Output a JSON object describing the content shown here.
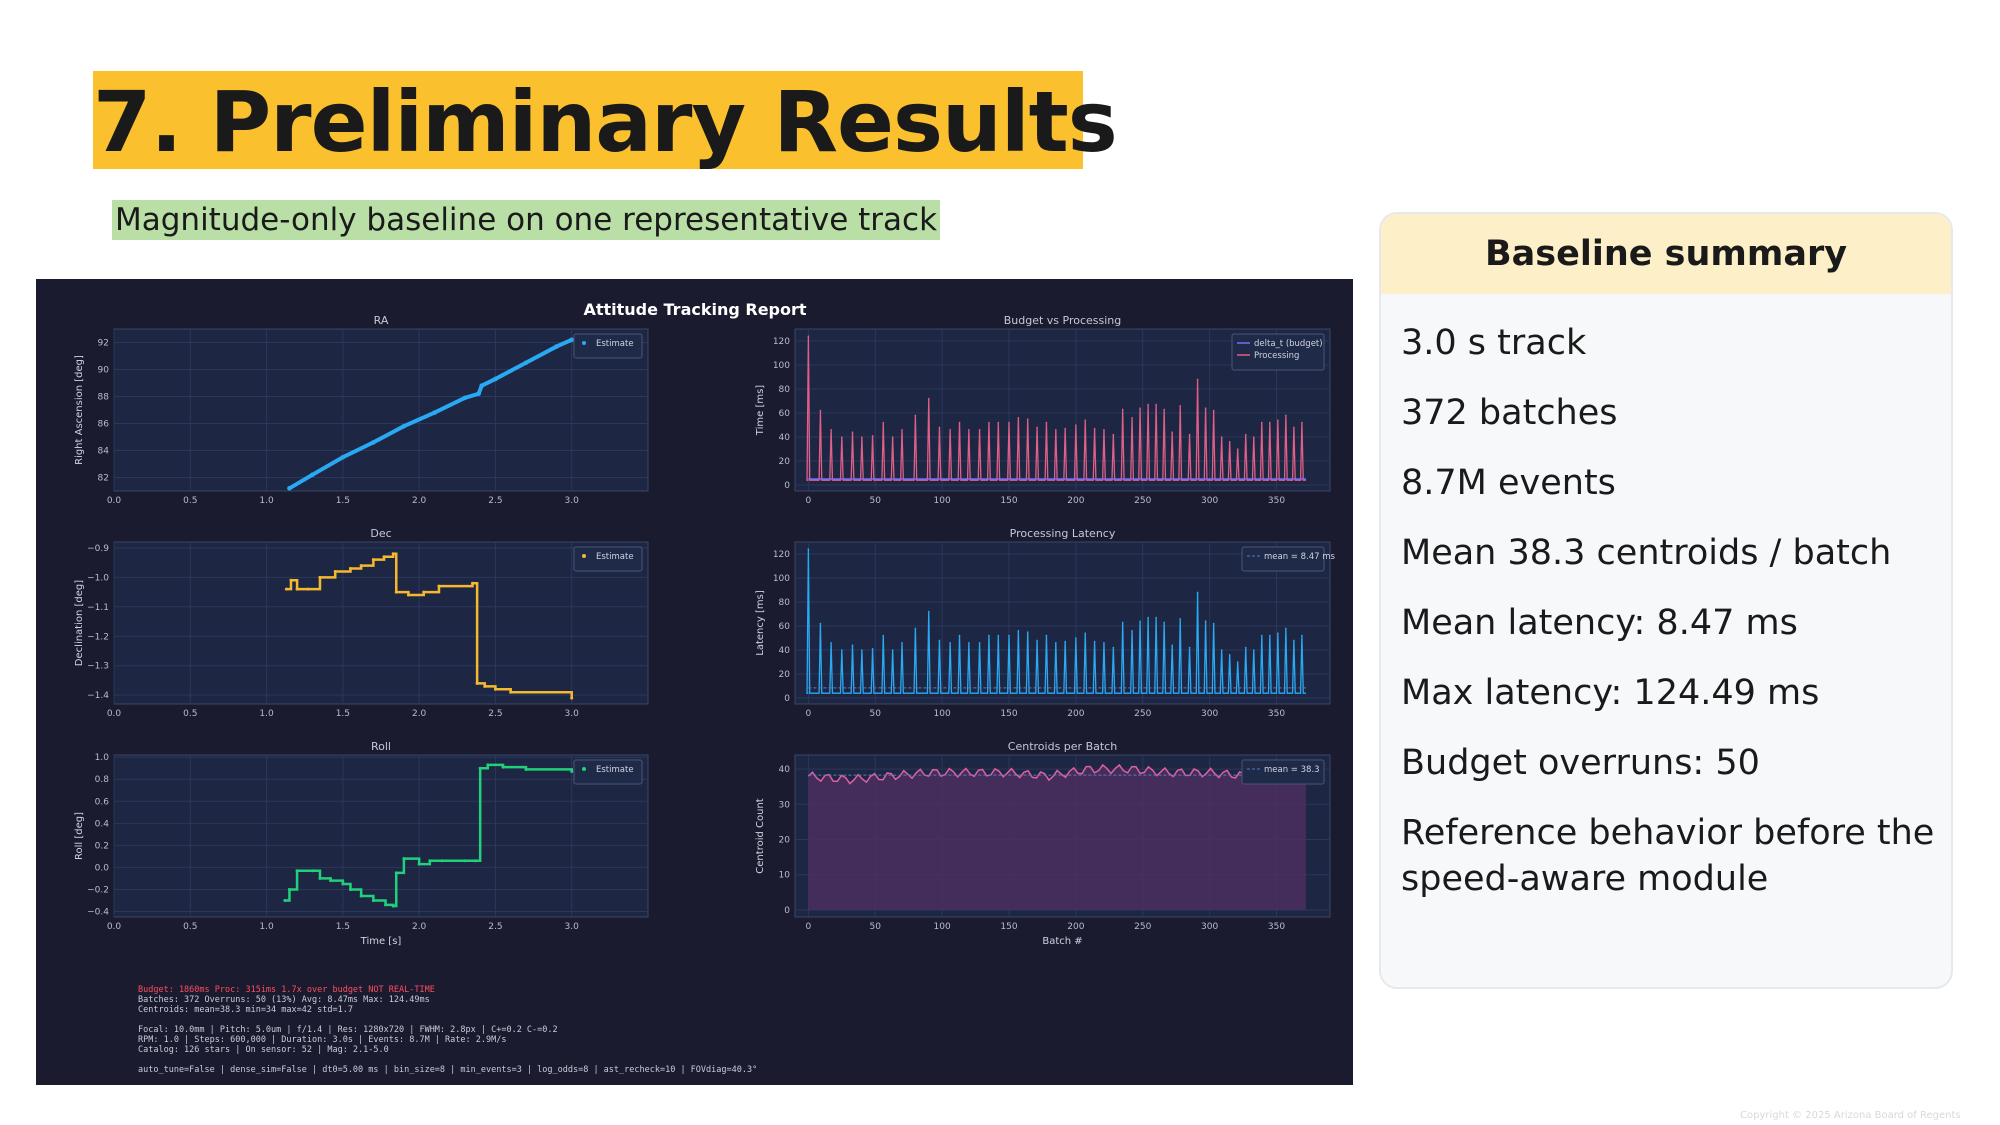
{
  "slide": {
    "title": "7. Preliminary Results",
    "subtitle": "Magnitude-only baseline on one representative track",
    "copyright": "Copyright © 2025 Arizona Board of Regents"
  },
  "summary": {
    "heading": "Baseline summary",
    "items": [
      "3.0 s track",
      "372 batches",
      "8.7M events",
      "Mean 38.3 centroids / batch",
      "Mean latency: 8.47 ms",
      "Max latency: 124.49 ms",
      "Budget overruns: 50",
      "Reference behavior before the speed-aware module"
    ]
  },
  "report": {
    "title": "Attitude Tracking Report",
    "footer_lines": [
      {
        "text": "Budget: 1860ms  Proc: 315ims  1.7x over budget  NOT REAL-TIME",
        "color": "#ff4d5e"
      },
      {
        "text": "Batches: 372  Overruns: 50 (13%)  Avg: 8.47ms  Max: 124.49ms",
        "color": "#c8ccd8"
      },
      {
        "text": "Centroids: mean=38.3  min=34  max=42  std=1.7",
        "color": "#c8ccd8"
      },
      {
        "text": "",
        "color": "#c8ccd8"
      },
      {
        "text": "Focal: 10.0mm  |  Pitch: 5.0um  |  f/1.4  |  Res: 1280x720  |  FWHM: 2.8px  |  C+=0.2 C-=0.2",
        "color": "#c8ccd8"
      },
      {
        "text": "RPM: 1.0  |  Steps: 600,000  |  Duration: 3.0s  |  Events: 8.7M  |  Rate: 2.9M/s",
        "color": "#c8ccd8"
      },
      {
        "text": "Catalog: 126 stars  |  On sensor: 52  |  Mag: 2.1-5.0",
        "color": "#c8ccd8"
      },
      {
        "text": "",
        "color": "#c8ccd8"
      },
      {
        "text": "auto_tune=False  |  dense_sim=False  |  dt0=5.00 ms  |  bin_size=8  |  min_events=3  |  log_odds=8  |  ast_recheck=10  |  FOVdiag=40.3°",
        "color": "#c8ccd8"
      }
    ]
  },
  "chart_data": [
    {
      "type": "scatter",
      "title": "RA",
      "xlabel": "",
      "ylabel": "Right Ascension [deg]",
      "xlim": [
        0,
        3.5
      ],
      "ylim": [
        81,
        93
      ],
      "xticks": [
        "0.0",
        "0.5",
        "1.0",
        "1.5",
        "2.0",
        "2.5",
        "3.0"
      ],
      "yticks": [
        "82",
        "84",
        "86",
        "88",
        "90",
        "92"
      ],
      "grid": true,
      "legend_position": "top-right",
      "color": "#2aa9f3",
      "series": [
        {
          "name": "Estimate",
          "x": [
            1.15,
            1.3,
            1.5,
            1.7,
            1.9,
            2.1,
            2.3,
            2.39,
            2.41,
            2.5,
            2.7,
            2.9,
            3.0
          ],
          "y": [
            81.2,
            82.2,
            83.5,
            84.6,
            85.8,
            86.8,
            87.9,
            88.2,
            88.8,
            89.3,
            90.5,
            91.7,
            92.2
          ]
        }
      ]
    },
    {
      "type": "line",
      "title": "Budget vs Processing",
      "xlabel": "",
      "ylabel": "Time [ms]",
      "xlim": [
        -10,
        390
      ],
      "ylim": [
        -5,
        130
      ],
      "xticks": [
        "0",
        "50",
        "100",
        "150",
        "200",
        "250",
        "300",
        "350"
      ],
      "yticks": [
        "0",
        "20",
        "40",
        "60",
        "80",
        "100",
        "120"
      ],
      "grid": true,
      "legend_position": "top-right",
      "series": [
        {
          "name": "delta_t (budget)",
          "color": "#7b6cf0",
          "x": [
            0,
            372
          ],
          "y": [
            5,
            5
          ]
        },
        {
          "name": "Processing",
          "color": "#e05f86",
          "baseline": 4,
          "peaks_x": [
            0,
            9,
            17,
            25,
            33,
            40,
            48,
            56,
            63,
            70,
            80,
            90,
            98,
            106,
            113,
            120,
            128,
            135,
            142,
            150,
            157,
            164,
            171,
            178,
            185,
            192,
            200,
            207,
            214,
            221,
            228,
            235,
            242,
            248,
            254,
            260,
            266,
            272,
            278,
            285,
            291,
            297,
            303,
            309,
            315,
            321,
            327,
            333,
            339,
            345,
            351,
            357,
            363,
            369
          ],
          "peaks_y": [
            124,
            62,
            46,
            40,
            44,
            40,
            41,
            52,
            40,
            46,
            58,
            72,
            48,
            46,
            52,
            46,
            46,
            52,
            52,
            52,
            56,
            55,
            48,
            52,
            46,
            47,
            50,
            54,
            47,
            46,
            42,
            63,
            56,
            64,
            67,
            67,
            63,
            44,
            66,
            42,
            88,
            64,
            62,
            40,
            36,
            30,
            42,
            40,
            52,
            52,
            54,
            58,
            48,
            52
          ]
        }
      ]
    },
    {
      "type": "line",
      "title": "Dec",
      "xlabel": "",
      "ylabel": "Declination [deg]",
      "xlim": [
        0,
        3.5
      ],
      "ylim": [
        -1.43,
        -0.88
      ],
      "xticks": [
        "0.0",
        "0.5",
        "1.0",
        "1.5",
        "2.0",
        "2.5",
        "3.0"
      ],
      "yticks": [
        "−0.9",
        "−1.0",
        "−1.1",
        "−1.2",
        "−1.3",
        "−1.4"
      ],
      "grid": true,
      "legend_position": "top-right",
      "color": "#f5b82e",
      "series": [
        {
          "name": "Estimate",
          "x": [
            1.13,
            1.16,
            1.2,
            1.27,
            1.35,
            1.45,
            1.55,
            1.62,
            1.7,
            1.77,
            1.83,
            1.85,
            1.93,
            2.03,
            2.13,
            2.35,
            2.38,
            2.43,
            2.5,
            2.6,
            3.0
          ],
          "y": [
            -1.04,
            -1.01,
            -1.04,
            -1.04,
            -1.0,
            -0.98,
            -0.97,
            -0.96,
            -0.94,
            -0.93,
            -0.92,
            -1.05,
            -1.06,
            -1.05,
            -1.03,
            -1.02,
            -1.36,
            -1.37,
            -1.38,
            -1.39,
            -1.41
          ]
        }
      ]
    },
    {
      "type": "line",
      "title": "Processing Latency",
      "xlabel": "",
      "ylabel": "Latency [ms]",
      "xlim": [
        -10,
        390
      ],
      "ylim": [
        -5,
        130
      ],
      "xticks": [
        "0",
        "50",
        "100",
        "150",
        "200",
        "250",
        "300",
        "350"
      ],
      "yticks": [
        "0",
        "20",
        "40",
        "60",
        "80",
        "100",
        "120"
      ],
      "grid": true,
      "legend_position": "top-right",
      "color": "#2aa9f3",
      "mean": 8.47,
      "series": [
        {
          "name": "mean = 8.47 ms",
          "baseline": 4,
          "peaks_x": [
            0,
            9,
            17,
            25,
            33,
            40,
            48,
            56,
            63,
            70,
            80,
            90,
            98,
            106,
            113,
            120,
            128,
            135,
            142,
            150,
            157,
            164,
            171,
            178,
            185,
            192,
            200,
            207,
            214,
            221,
            228,
            235,
            242,
            248,
            254,
            260,
            266,
            272,
            278,
            285,
            291,
            297,
            303,
            309,
            315,
            321,
            327,
            333,
            339,
            345,
            351,
            357,
            363,
            369
          ],
          "peaks_y": [
            124,
            62,
            46,
            40,
            44,
            40,
            41,
            52,
            40,
            46,
            58,
            72,
            48,
            46,
            52,
            46,
            46,
            52,
            52,
            52,
            56,
            55,
            48,
            52,
            46,
            47,
            50,
            54,
            47,
            46,
            42,
            63,
            56,
            64,
            67,
            67,
            63,
            44,
            66,
            42,
            88,
            64,
            62,
            40,
            36,
            30,
            42,
            40,
            52,
            52,
            54,
            58,
            48,
            52
          ]
        }
      ]
    },
    {
      "type": "line",
      "title": "Roll",
      "xlabel": "Time [s]",
      "ylabel": "Roll [deg]",
      "xlim": [
        0,
        3.5
      ],
      "ylim": [
        -0.45,
        1.02
      ],
      "xticks": [
        "0.0",
        "0.5",
        "1.0",
        "1.5",
        "2.0",
        "2.5",
        "3.0"
      ],
      "yticks": [
        "1.0",
        "0.8",
        "0.6",
        "0.4",
        "0.2",
        "0.0",
        "−0.2",
        "−0.4"
      ],
      "grid": true,
      "legend_position": "top-right",
      "color": "#21d07a",
      "series": [
        {
          "name": "Estimate",
          "x": [
            1.12,
            1.15,
            1.2,
            1.3,
            1.35,
            1.42,
            1.5,
            1.55,
            1.62,
            1.7,
            1.78,
            1.83,
            1.85,
            1.9,
            2.0,
            2.07,
            2.15,
            2.3,
            2.37,
            2.4,
            2.45,
            2.55,
            2.7,
            3.0
          ],
          "y": [
            -0.3,
            -0.2,
            -0.03,
            -0.03,
            -0.1,
            -0.12,
            -0.15,
            -0.2,
            -0.26,
            -0.3,
            -0.34,
            -0.35,
            -0.05,
            0.08,
            0.03,
            0.06,
            0.06,
            0.06,
            0.06,
            0.9,
            0.93,
            0.91,
            0.89,
            0.87
          ]
        }
      ]
    },
    {
      "type": "area",
      "title": "Centroids per Batch",
      "xlabel": "Batch #",
      "ylabel": "Centroid Count",
      "xlim": [
        -10,
        390
      ],
      "ylim": [
        -2,
        44
      ],
      "xticks": [
        "0",
        "50",
        "100",
        "150",
        "200",
        "250",
        "300",
        "350"
      ],
      "yticks": [
        "0",
        "10",
        "20",
        "30",
        "40"
      ],
      "grid": true,
      "legend_position": "top-right",
      "color": "#e05f9e",
      "mean": 38.3,
      "series": [
        {
          "name": "mean = 38.3",
          "x": [
            0,
            30,
            60,
            90,
            120,
            150,
            180,
            210,
            240,
            270,
            300,
            330,
            360,
            372
          ],
          "y": [
            38,
            37,
            38,
            39,
            39,
            39,
            38,
            40,
            40,
            39,
            39,
            38,
            37,
            37
          ]
        }
      ]
    }
  ]
}
